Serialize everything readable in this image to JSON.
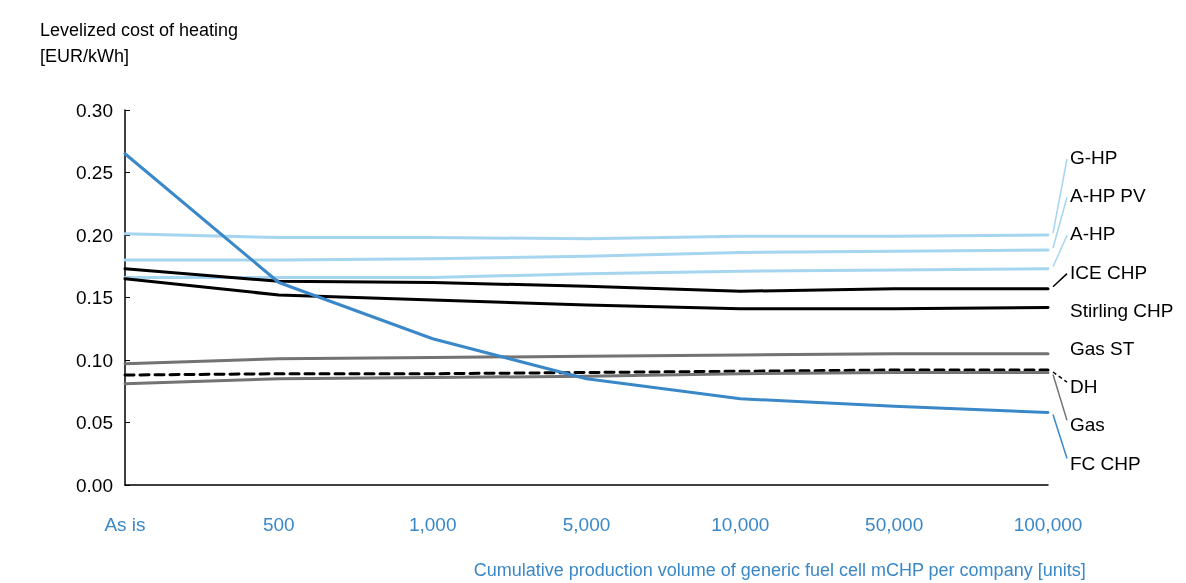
{
  "chart_data": {
    "type": "line",
    "ylabel": "Levelized cost of heating\n[EUR/kWh]",
    "xlabel": "Cumulative production volume of generic fuel cell mCHP per company [units]",
    "categories": [
      "As is",
      "500",
      "1,000",
      "5,000",
      "10,000",
      "50,000",
      "100,000"
    ],
    "ylim": [
      0,
      0.3
    ],
    "yticks": [
      {
        "value": 0,
        "label": "0.00"
      },
      {
        "value": 0.05,
        "label": "0.05"
      },
      {
        "value": 0.1,
        "label": "0.10"
      },
      {
        "value": 0.15,
        "label": "0.15"
      },
      {
        "value": 0.2,
        "label": "0.20"
      },
      {
        "value": 0.25,
        "label": "0.25"
      },
      {
        "value": 0.3,
        "label": "0.30"
      }
    ],
    "grid": false,
    "legend": "right",
    "marker": "none",
    "series": [
      {
        "name": "G-HP",
        "color": "#a6d5f0",
        "values": [
          0.201,
          0.198,
          0.198,
          0.197,
          0.199,
          0.199,
          0.2
        ]
      },
      {
        "name": "A-HP PV",
        "color": "#a6d5f0",
        "values": [
          0.18,
          0.18,
          0.181,
          0.183,
          0.186,
          0.187,
          0.188
        ]
      },
      {
        "name": "A-HP",
        "color": "#a6d5f0",
        "values": [
          0.166,
          0.166,
          0.166,
          0.169,
          0.171,
          0.172,
          0.173
        ]
      },
      {
        "name": "ICE CHP",
        "color": "#000000",
        "values": [
          0.173,
          0.163,
          0.162,
          0.159,
          0.155,
          0.157,
          0.157
        ]
      },
      {
        "name": "Stirling CHP",
        "color": "#000000",
        "values": [
          0.165,
          0.152,
          0.148,
          0.144,
          0.141,
          0.141,
          0.142
        ]
      },
      {
        "name": "Gas ST",
        "color": "#737373",
        "values": [
          0.097,
          0.101,
          0.102,
          0.103,
          0.104,
          0.105,
          0.105
        ]
      },
      {
        "name": "DH",
        "color": "#000000",
        "line_style": "dashed",
        "values": [
          0.088,
          0.089,
          0.089,
          0.09,
          0.091,
          0.092,
          0.092
        ]
      },
      {
        "name": "Gas",
        "color": "#737373",
        "values": [
          0.081,
          0.085,
          0.086,
          0.087,
          0.089,
          0.09,
          0.09
        ]
      },
      {
        "name": "FC CHP",
        "color": "#3a88c8",
        "values": [
          0.265,
          0.162,
          0.117,
          0.085,
          0.069,
          0.063,
          0.058
        ]
      }
    ]
  }
}
